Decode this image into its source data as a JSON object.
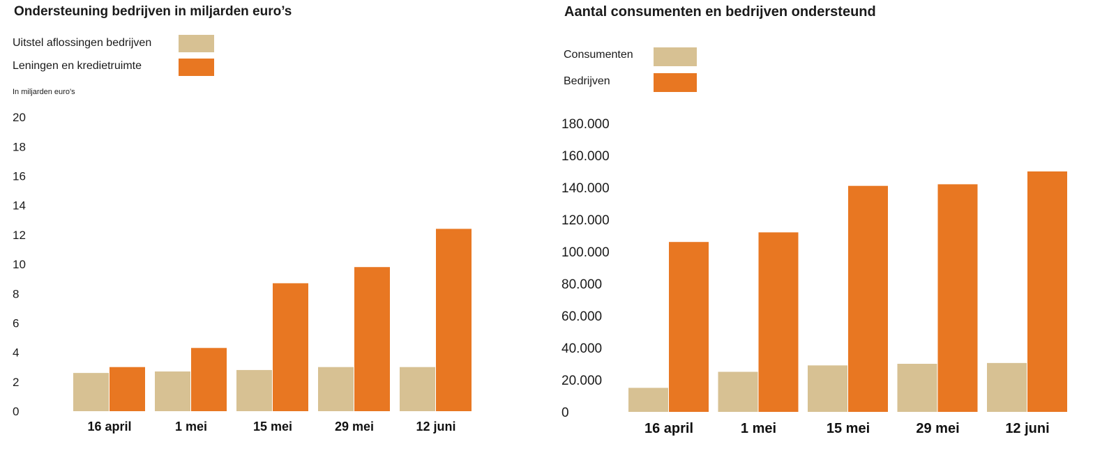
{
  "colors": {
    "light": "#d7c193",
    "dark": "#e87722"
  },
  "chart_data": [
    {
      "type": "bar",
      "title": "Ondersteuning bedrijven in miljarden euro’s",
      "unit_label": "In miljarden euro’s",
      "categories": [
        "16 april",
        "1 mei",
        "15 mei",
        "29 mei",
        "12 juni"
      ],
      "series": [
        {
          "name": "Uitstel aflossingen bedrijven",
          "color": "#d7c193",
          "values": [
            2.6,
            2.7,
            2.8,
            3.0,
            3.0
          ]
        },
        {
          "name": "Leningen en kredietruimte",
          "color": "#e87722",
          "values": [
            3.0,
            4.3,
            8.7,
            9.8,
            12.4
          ]
        }
      ],
      "yticks": [
        0,
        2,
        4,
        6,
        8,
        10,
        12,
        14,
        16,
        18,
        20
      ],
      "ytick_labels": [
        "0",
        "2",
        "4",
        "6",
        "8",
        "10",
        "12",
        "14",
        "16",
        "18",
        "20"
      ],
      "ylim": [
        0,
        20
      ],
      "grid": false,
      "legend": "top-left"
    },
    {
      "type": "bar",
      "title": "Aantal consumenten en bedrijven ondersteund",
      "categories": [
        "16 april",
        "1 mei",
        "15 mei",
        "29 mei",
        "12 juni"
      ],
      "series": [
        {
          "name": "Consumenten",
          "color": "#d7c193",
          "values": [
            15000,
            25000,
            29000,
            30000,
            30500
          ]
        },
        {
          "name": "Bedrijven",
          "color": "#e87722",
          "values": [
            106000,
            112000,
            141000,
            142000,
            150000
          ]
        }
      ],
      "yticks": [
        0,
        20000,
        40000,
        60000,
        80000,
        100000,
        120000,
        140000,
        160000,
        180000
      ],
      "ytick_labels": [
        "0",
        "20.000",
        "40.000",
        "60.000",
        "80.000",
        "100.000",
        "120.000",
        "140.000",
        "160.000",
        "180.000"
      ],
      "ylim": [
        0,
        180000
      ],
      "grid": false,
      "legend": "top-left"
    }
  ]
}
